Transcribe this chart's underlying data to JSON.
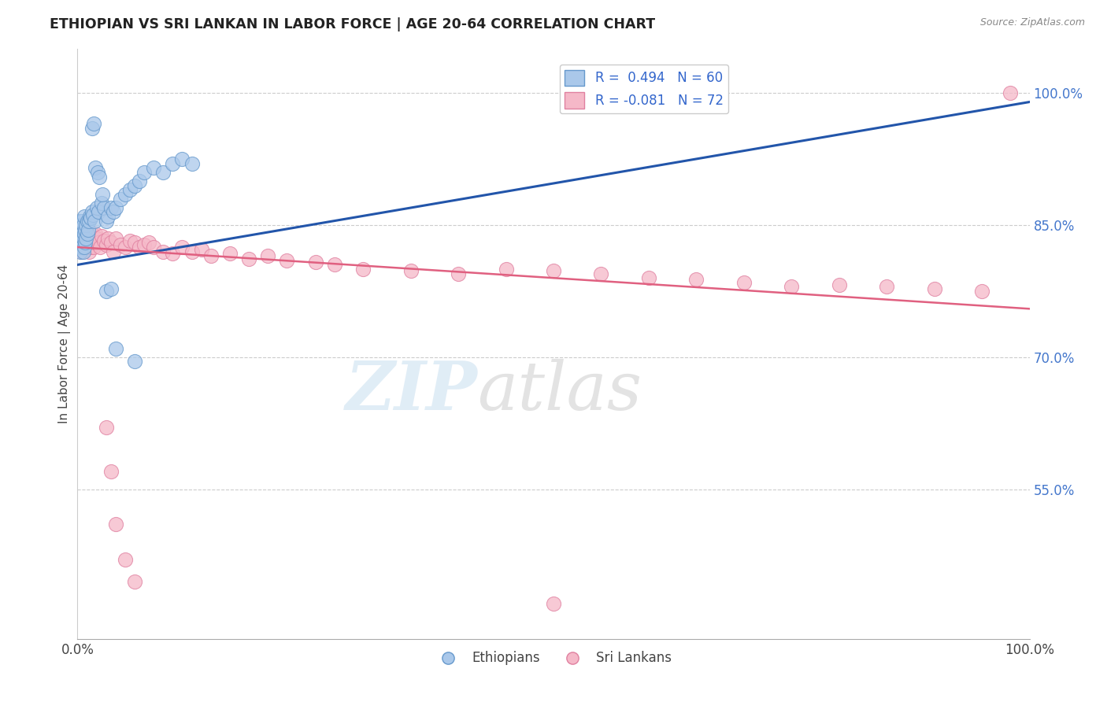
{
  "title": "ETHIOPIAN VS SRI LANKAN IN LABOR FORCE | AGE 20-64 CORRELATION CHART",
  "source_text": "Source: ZipAtlas.com",
  "ylabel": "In Labor Force | Age 20-64",
  "xlim": [
    0.0,
    1.0
  ],
  "ylim": [
    0.38,
    1.05
  ],
  "ytick_positions": [
    0.55,
    0.7,
    0.85,
    1.0
  ],
  "ytick_labels": [
    "55.0%",
    "70.0%",
    "85.0%",
    "100.0%"
  ],
  "background_color": "#ffffff",
  "eth_color": "#aac8ea",
  "eth_edge": "#6699cc",
  "srl_color": "#f5b8c8",
  "srl_edge": "#e080a0",
  "eth_trendline_color": "#2255aa",
  "srl_trendline_color": "#e06080",
  "eth_trendline_y0": 0.805,
  "eth_trendline_y1": 0.99,
  "srl_trendline_y0": 0.825,
  "srl_trendline_y1": 0.755,
  "legend_r_eth": "R =  0.494   N = 60",
  "legend_r_srl": "R = -0.081   N = 72",
  "legend_label_eth": "Ethiopians",
  "legend_label_srl": "Sri Lankans",
  "eth_x": [
    0.001,
    0.002,
    0.002,
    0.003,
    0.003,
    0.003,
    0.004,
    0.004,
    0.005,
    0.005,
    0.005,
    0.006,
    0.006,
    0.006,
    0.007,
    0.007,
    0.007,
    0.008,
    0.008,
    0.009,
    0.009,
    0.01,
    0.01,
    0.011,
    0.012,
    0.013,
    0.014,
    0.015,
    0.016,
    0.018,
    0.02,
    0.022,
    0.025,
    0.028,
    0.03,
    0.032,
    0.035,
    0.038,
    0.04,
    0.045,
    0.05,
    0.055,
    0.06,
    0.065,
    0.07,
    0.08,
    0.09,
    0.1,
    0.11,
    0.12,
    0.015,
    0.017,
    0.019,
    0.021,
    0.023,
    0.026,
    0.03,
    0.035,
    0.04,
    0.06
  ],
  "eth_y": [
    0.84,
    0.825,
    0.855,
    0.82,
    0.835,
    0.85,
    0.83,
    0.845,
    0.825,
    0.84,
    0.855,
    0.82,
    0.835,
    0.85,
    0.825,
    0.84,
    0.86,
    0.83,
    0.845,
    0.835,
    0.85,
    0.84,
    0.855,
    0.845,
    0.855,
    0.86,
    0.858,
    0.865,
    0.862,
    0.855,
    0.87,
    0.865,
    0.875,
    0.87,
    0.855,
    0.86,
    0.87,
    0.865,
    0.87,
    0.88,
    0.885,
    0.89,
    0.895,
    0.9,
    0.91,
    0.915,
    0.91,
    0.92,
    0.925,
    0.92,
    0.96,
    0.965,
    0.915,
    0.91,
    0.905,
    0.885,
    0.775,
    0.778,
    0.71,
    0.695
  ],
  "srl_x": [
    0.001,
    0.002,
    0.003,
    0.004,
    0.005,
    0.005,
    0.006,
    0.007,
    0.007,
    0.008,
    0.009,
    0.01,
    0.01,
    0.011,
    0.012,
    0.013,
    0.014,
    0.015,
    0.016,
    0.017,
    0.018,
    0.019,
    0.02,
    0.022,
    0.024,
    0.025,
    0.028,
    0.03,
    0.032,
    0.035,
    0.038,
    0.04,
    0.045,
    0.05,
    0.055,
    0.06,
    0.065,
    0.07,
    0.075,
    0.08,
    0.09,
    0.1,
    0.11,
    0.12,
    0.13,
    0.14,
    0.16,
    0.18,
    0.2,
    0.22,
    0.25,
    0.27,
    0.3,
    0.35,
    0.4,
    0.45,
    0.5,
    0.55,
    0.6,
    0.65,
    0.7,
    0.75,
    0.8,
    0.85,
    0.9,
    0.95,
    0.98,
    0.03,
    0.035,
    0.04,
    0.05,
    0.06
  ],
  "srl_y": [
    0.84,
    0.825,
    0.835,
    0.83,
    0.82,
    0.84,
    0.835,
    0.825,
    0.845,
    0.83,
    0.835,
    0.825,
    0.84,
    0.83,
    0.82,
    0.835,
    0.825,
    0.84,
    0.835,
    0.825,
    0.83,
    0.84,
    0.835,
    0.83,
    0.825,
    0.838,
    0.832,
    0.828,
    0.835,
    0.83,
    0.82,
    0.835,
    0.828,
    0.825,
    0.832,
    0.83,
    0.825,
    0.828,
    0.83,
    0.825,
    0.82,
    0.818,
    0.825,
    0.82,
    0.822,
    0.815,
    0.818,
    0.812,
    0.815,
    0.81,
    0.808,
    0.805,
    0.8,
    0.798,
    0.795,
    0.8,
    0.798,
    0.795,
    0.79,
    0.788,
    0.785,
    0.78,
    0.782,
    0.78,
    0.778,
    0.775,
    1.0,
    0.62,
    0.57,
    0.51,
    0.47,
    0.445
  ],
  "srl_x2": [
    0.5
  ],
  "srl_y2": [
    0.42
  ],
  "srl_x3": [
    0.975
  ],
  "srl_y3": [
    1.0
  ]
}
